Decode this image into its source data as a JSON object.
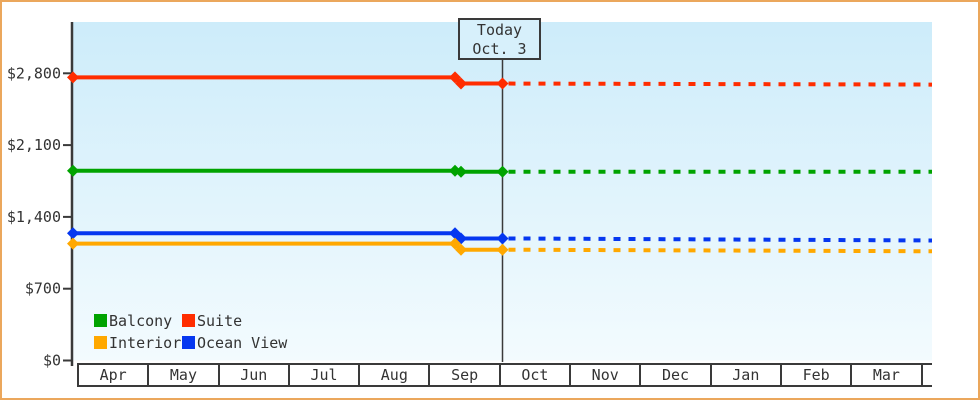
{
  "window": {
    "border_color": "#eba75c",
    "background": "#ffffff"
  },
  "colors": {
    "axis": "#3a3a3a",
    "text": "#333333",
    "plot_bg_top": "#cdecfa",
    "plot_bg_bottom": "#f3fbfe",
    "today_line": "#3a3a3a",
    "today_box_fill": "#d7f0fb"
  },
  "today_flag": {
    "line1": "Today",
    "line2": "Oct. 3"
  },
  "legend": [
    {
      "label": "Balcony",
      "color": "#00a300"
    },
    {
      "label": "Suite",
      "color": "#ff2d00"
    },
    {
      "label": "Interior",
      "color": "#ffa800"
    },
    {
      "label": "Ocean View",
      "color": "#0537f0"
    }
  ],
  "chart_data": {
    "type": "line",
    "title": "",
    "xlabel": "",
    "ylabel": "",
    "ylim": [
      0,
      2800
    ],
    "grid": false,
    "legend_position": "bottom-left",
    "yticks": [
      {
        "value": 0,
        "label": "$0"
      },
      {
        "value": 700,
        "label": "$700"
      },
      {
        "value": 1400,
        "label": "$1,400"
      },
      {
        "value": 2100,
        "label": "$2,100"
      },
      {
        "value": 2800,
        "label": "$2,800"
      }
    ],
    "x_categories": [
      "Apr",
      "May",
      "Jun",
      "Jul",
      "Aug",
      "Sep",
      "Oct",
      "Nov",
      "Dec",
      "Jan",
      "Feb",
      "Mar"
    ],
    "today": {
      "label": "Today Oct. 3",
      "month": "Oct",
      "day": 3
    },
    "annotation": "solid line = past prices; markers at start, mid-Sep price change, and today; dashed line = forecast after today",
    "series": [
      {
        "name": "Suite",
        "color": "#ff2d00",
        "price_start": 2760,
        "price_after_drop": 2700,
        "price_forecast_end": 2690
      },
      {
        "name": "Balcony",
        "color": "#00a300",
        "price_start": 1850,
        "price_after_drop": 1840,
        "price_forecast_end": 1840
      },
      {
        "name": "Ocean View",
        "color": "#0537f0",
        "price_start": 1240,
        "price_after_drop": 1190,
        "price_forecast_end": 1170
      },
      {
        "name": "Interior",
        "color": "#ffa800",
        "price_start": 1140,
        "price_after_drop": 1080,
        "price_forecast_end": 1065
      }
    ]
  }
}
